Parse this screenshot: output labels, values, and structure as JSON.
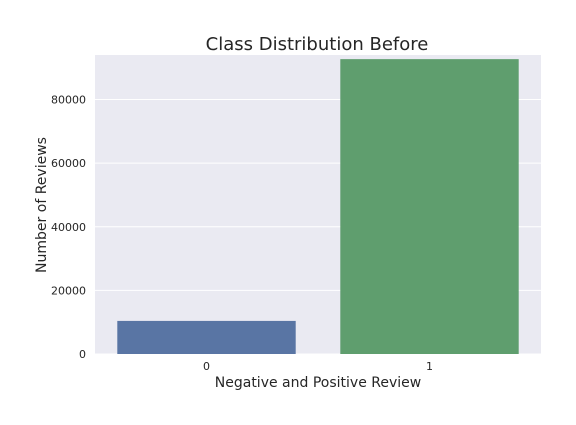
{
  "chart_data": {
    "type": "bar",
    "title": "Class Distribution Before",
    "xlabel": "Negative and Positive Review",
    "ylabel": "Number of Reviews",
    "categories": [
      "0",
      "1"
    ],
    "values": [
      10400,
      92700
    ],
    "ylim": [
      0,
      94000
    ],
    "yticks": [
      0,
      20000,
      40000,
      60000,
      80000
    ],
    "ytick_labels": [
      "0",
      "20000",
      "40000",
      "60000",
      "80000"
    ],
    "grid": true,
    "colors": [
      "#5975a4",
      "#5f9e6e"
    ],
    "background": "#eaeaf2"
  }
}
